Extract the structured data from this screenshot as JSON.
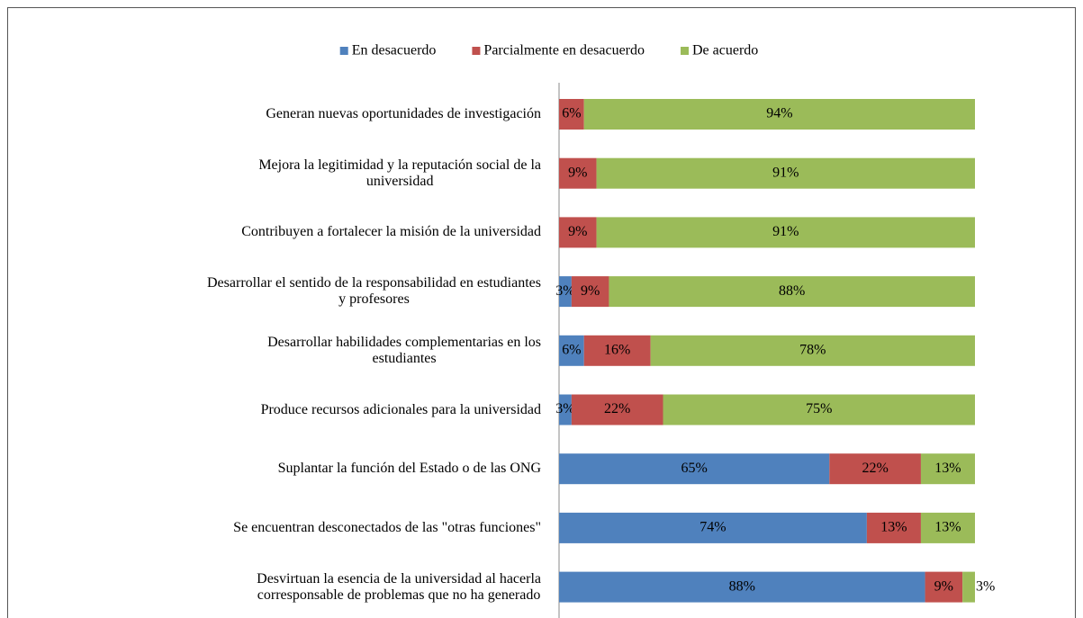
{
  "chart_data": {
    "type": "stacked_bar_horizontal",
    "categories": [
      "Generan nuevas oportunidades de investigación",
      "Mejora la legitimidad y la reputación social de la\nuniversidad",
      "Contribuyen a fortalecer la misión de la universidad",
      "Desarrollar el sentido de la responsabilidad en estudiantes\ny profesores",
      "Desarrollar habilidades complementarias en los\nestudiantes",
      "Produce recursos adicionales para la universidad",
      "Suplantar la función del Estado o de las ONG",
      "Se encuentran desconectados de las \"otras funciones\"",
      "Desvirtuan la esencia de la universidad al hacerla\ncorresponsable de problemas que no ha generado"
    ],
    "series": [
      {
        "name": "En desacuerdo",
        "color": "#4f81bd",
        "values": [
          null,
          null,
          null,
          3,
          6,
          3,
          65,
          74,
          88
        ],
        "value_labels": [
          null,
          null,
          null,
          "3%",
          "6%",
          "3%",
          "65%",
          "74%",
          "88%"
        ]
      },
      {
        "name": "Parcialmente en desacuerdo",
        "color": "#c0504d",
        "values": [
          6,
          9,
          9,
          9,
          16,
          22,
          22,
          13,
          9
        ],
        "value_labels": [
          "6%",
          "9%",
          "9%",
          "9%",
          "16%",
          "22%",
          "22%",
          "13%",
          "9%"
        ]
      },
      {
        "name": "De acuerdo",
        "color": "#9bbb59",
        "values": [
          94,
          91,
          91,
          88,
          78,
          75,
          13,
          13,
          3
        ],
        "value_labels": [
          "94%",
          "91%",
          "91%",
          "88%",
          "78%",
          "75%",
          "13%",
          "13%",
          "3%"
        ]
      }
    ],
    "xlim": [
      0,
      100
    ],
    "legend": "top"
  }
}
